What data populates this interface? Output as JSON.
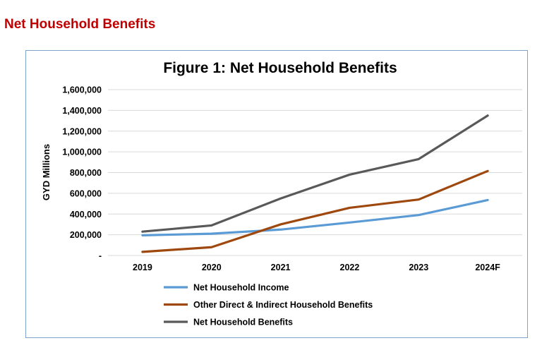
{
  "page": {
    "heading": "Net Household Benefits"
  },
  "chart_data": {
    "type": "line",
    "title": "Figure 1: Net Household Benefits",
    "xlabel": "",
    "ylabel": "GYD Millions",
    "categories": [
      "2019",
      "2020",
      "2021",
      "2022",
      "2023",
      "2024F"
    ],
    "ylim": [
      0,
      1600000
    ],
    "yticks": [
      0,
      200000,
      400000,
      600000,
      800000,
      1000000,
      1200000,
      1400000,
      1600000
    ],
    "ytick_labels": [
      "-",
      "200,000",
      "400,000",
      "600,000",
      "800,000",
      "1,000,000",
      "1,200,000",
      "1,400,000",
      "1,600,000"
    ],
    "grid": true,
    "legend_position": "bottom",
    "series": [
      {
        "name": "Net Household Income",
        "color": "#5b9bd5",
        "values": [
          195000,
          210000,
          250000,
          318000,
          390000,
          535000
        ]
      },
      {
        "name": "Other Direct & Indirect Household Benefits",
        "color": "#9e480e",
        "values": [
          35000,
          80000,
          300000,
          460000,
          540000,
          815000
        ]
      },
      {
        "name": "Net Household Benefits",
        "color": "#595959",
        "values": [
          230000,
          290000,
          550000,
          780000,
          930000,
          1350000
        ]
      }
    ]
  }
}
